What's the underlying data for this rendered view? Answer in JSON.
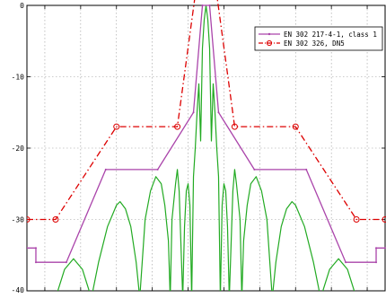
{
  "chart_data": {
    "type": "line",
    "ylim": [
      -40,
      0
    ],
    "xlim": [
      -1,
      1
    ],
    "y_ticks": [
      0,
      -10,
      -20,
      -30,
      -40
    ],
    "y_tick_labels": [
      "0",
      "-10",
      "-20",
      "-30",
      "-40"
    ],
    "x_ticks": [
      -0.9,
      -0.7,
      -0.5,
      -0.3,
      -0.1,
      0.1,
      0.3,
      0.5,
      0.7,
      0.9
    ],
    "grid": true,
    "legend_placement": "top-right",
    "series": [
      {
        "name": "EN 302 217-4-1, class 1",
        "color": "#aa44aa",
        "line_style": "solid",
        "marker": "point",
        "x": [
          -1.0,
          -0.95,
          -0.95,
          -0.78,
          -0.56,
          -0.27,
          -0.07,
          -0.02,
          0.02,
          0.07,
          0.27,
          0.56,
          0.78,
          0.95,
          0.95,
          1.0
        ],
        "y": [
          -34,
          -34,
          -36,
          -36,
          -23,
          -23,
          -15,
          0,
          0,
          -15,
          -23,
          -23,
          -36,
          -36,
          -34,
          -34
        ]
      },
      {
        "name": "EN 302 326, DN5",
        "color": "#dd0000",
        "line_style": "dash-dot",
        "marker": "circle",
        "x": [
          -1.0,
          -0.84,
          -0.5,
          -0.16,
          -0.06,
          0.06,
          0.16,
          0.5,
          0.84,
          1.0
        ],
        "y": [
          -30,
          -30,
          -17,
          -17,
          1.5,
          1.5,
          -17,
          -17,
          -30,
          -30
        ]
      },
      {
        "name": "",
        "color": "#22aa22",
        "line_style": "solid",
        "marker": "none",
        "description_free_samples": "antenna radiation pattern",
        "x": [
          -0.84,
          -0.79,
          -0.74,
          -0.69,
          -0.64,
          -0.6,
          -0.55,
          -0.5,
          -0.48,
          -0.45,
          -0.42,
          -0.39,
          -0.37,
          -0.34,
          -0.31,
          -0.28,
          -0.25,
          -0.23,
          -0.21,
          -0.2,
          -0.19,
          -0.17,
          -0.16,
          -0.15,
          -0.13,
          -0.12,
          -0.11,
          -0.1,
          -0.09,
          -0.08,
          -0.07,
          -0.06,
          -0.05,
          -0.04,
          -0.03,
          -0.02,
          -0.01,
          0.0,
          0.01,
          0.02,
          0.03,
          0.04,
          0.05,
          0.06,
          0.07,
          0.08,
          0.09,
          0.1,
          0.11,
          0.12,
          0.13,
          0.15,
          0.16,
          0.17,
          0.19,
          0.2,
          0.21,
          0.23,
          0.25,
          0.28,
          0.31,
          0.34,
          0.37,
          0.39,
          0.42,
          0.45,
          0.48,
          0.5,
          0.55,
          0.6,
          0.64,
          0.69,
          0.74,
          0.79,
          0.84
        ],
        "y": [
          -41,
          -37,
          -35.5,
          -37,
          -41,
          -36,
          -31,
          -28,
          -27.5,
          -28.5,
          -31,
          -36,
          -41,
          -30,
          -26,
          -24,
          -25,
          -28,
          -33,
          -41,
          -30,
          -25,
          -23,
          -26,
          -41,
          -31,
          -26,
          -25,
          -28,
          -41,
          -24,
          -20,
          -15,
          -11,
          -19,
          -6,
          -2,
          0,
          -2,
          -6,
          -19,
          -11,
          -15,
          -20,
          -24,
          -41,
          -28,
          -25,
          -26,
          -31,
          -41,
          -26,
          -23,
          -25,
          -30,
          -41,
          -33,
          -28,
          -25,
          -24,
          -26,
          -30,
          -41,
          -36,
          -31,
          -28.5,
          -27.5,
          -28,
          -31,
          -36,
          -41,
          -37,
          -35.5,
          -37,
          -41
        ]
      }
    ],
    "legend": [
      {
        "label": "EN 302 217-4-1, class 1"
      },
      {
        "label": "EN 302 326, DN5"
      }
    ]
  }
}
